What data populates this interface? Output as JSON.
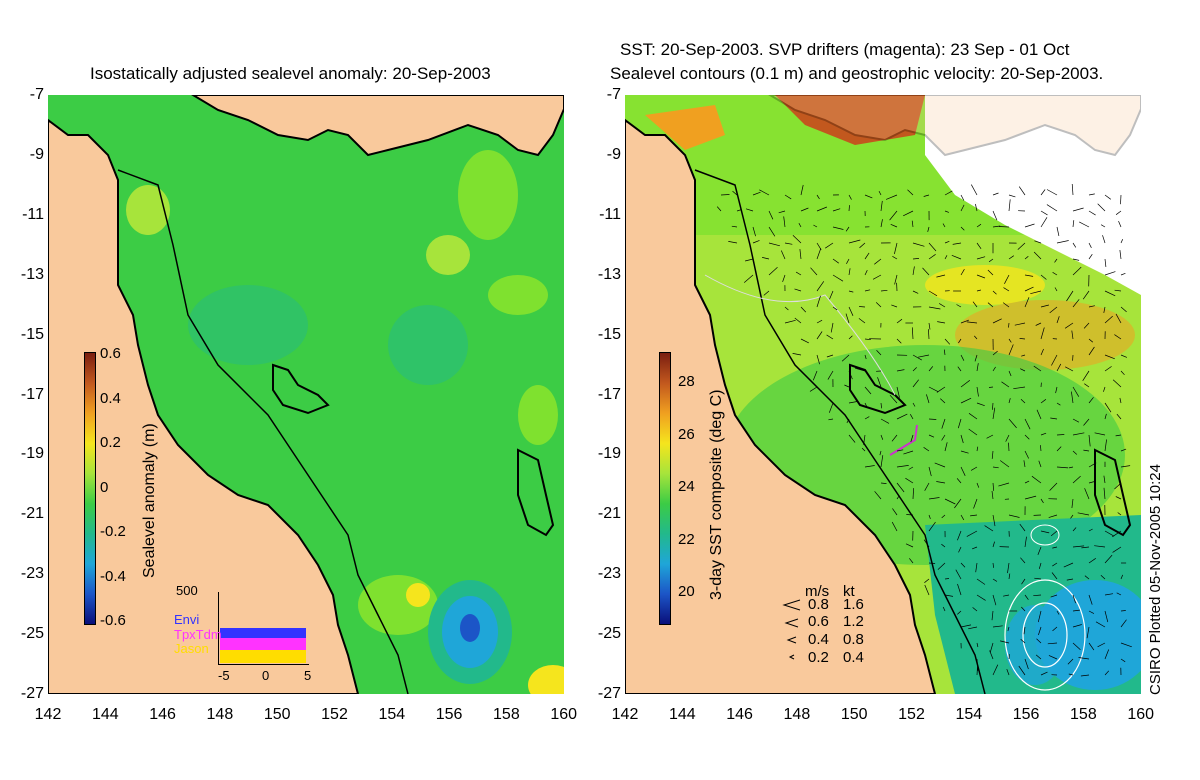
{
  "left": {
    "title": "Isostatically adjusted sealevel anomaly: 20-Sep-2003",
    "colorbar_label": "Sealevel anomaly (m)",
    "colorbar_ticks": [
      "0.6",
      "0.4",
      "0.2",
      "0",
      "-0.2",
      "-0.4",
      "-0.6"
    ],
    "colorbar_colors": [
      "#7a1e10",
      "#c2581e",
      "#f0a020",
      "#f5e51d",
      "#a7e43b",
      "#3ccc45",
      "#22b98b",
      "#1fa6d8",
      "#1c55c7",
      "#0a0f7a"
    ],
    "inset": {
      "ymax_label": "500",
      "legend": [
        "Envi",
        "TpxTdm",
        "Jason"
      ],
      "legend_colors": [
        "#3333ff",
        "#ff33ff",
        "#ffdd00"
      ],
      "xticks": [
        "-5",
        "0",
        "5"
      ]
    }
  },
  "right": {
    "title_line1": "SST: 20-Sep-2003. SVP drifters (magenta): 23 Sep - 01 Oct",
    "title_line2": "Sealevel contours (0.1 m) and geostrophic velocity: 20-Sep-2003.",
    "colorbar_label": "3-day SST composite (deg C)",
    "colorbar_ticks": [
      "28",
      "26",
      "24",
      "22",
      "20"
    ],
    "colorbar_colors": [
      "#7a1e10",
      "#c2581e",
      "#f0a020",
      "#f5e51d",
      "#a7e43b",
      "#3ccc45",
      "#22b98b",
      "#1fa6d8",
      "#1c55c7",
      "#0a0f7a"
    ],
    "velocity_legend": {
      "header": [
        "m/s",
        "kt"
      ],
      "rows": [
        [
          "0.8",
          "1.6"
        ],
        [
          "0.6",
          "1.2"
        ],
        [
          "0.4",
          "0.8"
        ],
        [
          "0.2",
          "0.4"
        ]
      ]
    }
  },
  "axes": {
    "y_ticks": [
      "-7",
      "-9",
      "-11",
      "-13",
      "-15",
      "-17",
      "-19",
      "-21",
      "-23",
      "-25",
      "-27"
    ],
    "x_ticks": [
      "142",
      "144",
      "146",
      "148",
      "150",
      "152",
      "154",
      "156",
      "158",
      "160"
    ]
  },
  "credit": "CSIRO Plotted 05-Nov-2005 10:24",
  "colors": {
    "land": "#f9c99c",
    "ocean_base": "#3ccc45",
    "ocean_light": "#7fe12f",
    "ocean_cool": "#22b98b"
  }
}
